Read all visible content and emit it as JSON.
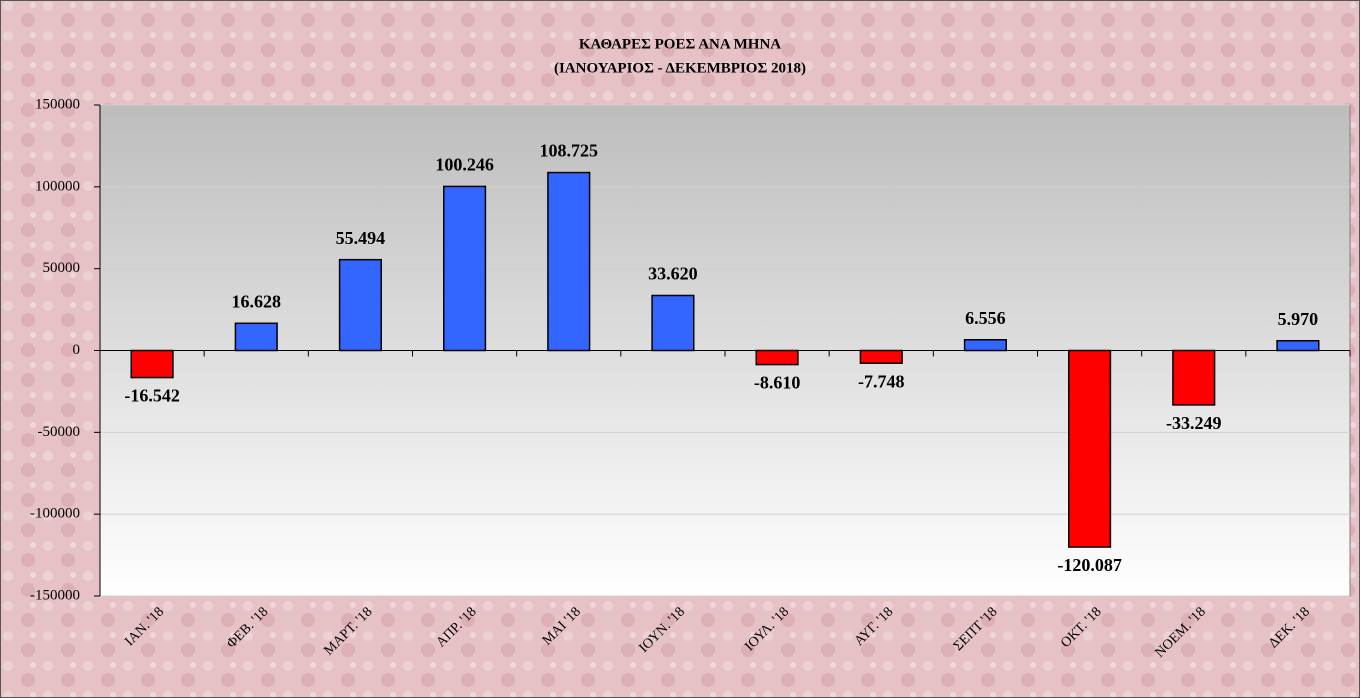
{
  "chart_data": {
    "type": "bar",
    "title": "ΚΑΘΑΡΕΣ ΡΟΕΣ ΑΝΑ ΜΗΝΑ",
    "subtitle": "(ΙΑΝΟΥΑΡΙΟΣ  -  ΔΕΚΕΜΒΡΙΟΣ  2018)",
    "categories": [
      "ΙΑΝ. '18",
      "ΦΕΒ. '18",
      "ΜΑΡΤ. '18",
      "ΑΠΡ. '18",
      "ΜΑΙ '18",
      "ΙΟΥΝ. '18",
      "ΙΟΥΛ. '18",
      "ΑΥΓ. '18",
      "ΣΕΠΤ '18",
      "ΟΚΤ. '18",
      "ΝΟΕΜ. '18",
      "ΔΕΚ. '18"
    ],
    "values": [
      -16542,
      16628,
      55494,
      100246,
      108725,
      33620,
      -8610,
      -7748,
      6556,
      -120087,
      -33249,
      5970
    ],
    "value_labels": [
      "-16.542",
      "16.628",
      "55.494",
      "100.246",
      "108.725",
      "33.620",
      "-8.610",
      "-7.748",
      "6.556",
      "-120.087",
      "-33.249",
      "5.970"
    ],
    "color": "#3366ff",
    "negative_color": "#ff0000",
    "ylim": [
      -150000,
      150000
    ],
    "yticks": [
      -150000,
      -100000,
      -50000,
      0,
      50000,
      100000,
      150000
    ],
    "grid": true
  }
}
